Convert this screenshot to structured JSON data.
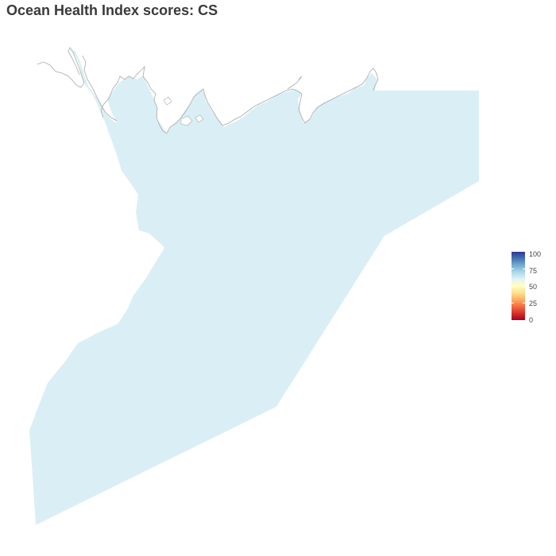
{
  "title": "Ocean Health Index scores: CS",
  "map": {
    "region_fill": "#daeff5",
    "coast_stroke": "#a9a9a9"
  },
  "legend": {
    "labels": [
      "100",
      "75",
      "50",
      "25",
      "0"
    ],
    "values": [
      100,
      75,
      50,
      25,
      0
    ],
    "colors": [
      "#313695",
      "#74add1",
      "#fee090",
      "#f46d43",
      "#a50026"
    ],
    "color_stops": [
      "#313695",
      "#4575b4",
      "#74add1",
      "#abd9e9",
      "#e0f3f8",
      "#ffffbf",
      "#fee090",
      "#fdae61",
      "#f46d43",
      "#d73027",
      "#a50026"
    ]
  }
}
